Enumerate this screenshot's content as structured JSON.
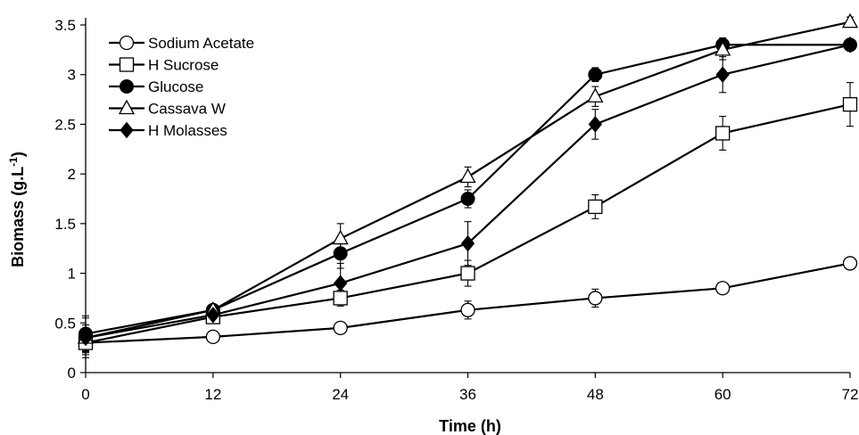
{
  "chart_data": {
    "type": "line",
    "title": "",
    "xlabel": "Time (h)",
    "ylabel": "Biomass (g.L-1)",
    "ylabel_parts": {
      "main": "Biomass (g.L",
      "sup": "-1",
      "close": ")"
    },
    "x": [
      0,
      12,
      24,
      36,
      48,
      60,
      72
    ],
    "xlim": [
      0,
      72
    ],
    "ylim": [
      0,
      3.5
    ],
    "x_ticks": [
      "0",
      "12",
      "24",
      "36",
      "48",
      "60",
      "72"
    ],
    "y_ticks": [
      "0",
      "0.5",
      "1",
      "1.5",
      "2",
      "2.5",
      "3",
      "3.5"
    ],
    "grid": false,
    "legend_position": "top-left",
    "series": [
      {
        "name": "Sodium Acetate",
        "marker": "circle-open",
        "values": [
          0.3,
          0.36,
          0.45,
          0.63,
          0.75,
          0.85,
          1.1
        ],
        "errors": [
          0.1,
          0.03,
          0.06,
          0.09,
          0.09,
          0.04,
          0.05
        ]
      },
      {
        "name": "H Sucrose",
        "marker": "square-open",
        "values": [
          0.3,
          0.56,
          0.75,
          1.0,
          1.67,
          2.41,
          2.7
        ],
        "errors": [
          0.12,
          0.03,
          0.08,
          0.13,
          0.12,
          0.17,
          0.22
        ]
      },
      {
        "name": "Glucose",
        "marker": "circle-filled",
        "values": [
          0.39,
          0.63,
          1.2,
          1.75,
          3.0,
          3.3,
          3.3
        ],
        "errors": [
          0.18,
          0.03,
          0.15,
          0.09,
          0.07,
          0.07,
          0.06
        ]
      },
      {
        "name": "Cassava W",
        "marker": "triangle-open",
        "values": [
          0.35,
          0.63,
          1.35,
          1.97,
          2.78,
          3.25,
          3.53
        ],
        "errors": [
          0.2,
          0.03,
          0.15,
          0.1,
          0.1,
          0.1,
          0.05
        ]
      },
      {
        "name": "H Molasses",
        "marker": "diamond-filled",
        "values": [
          0.35,
          0.58,
          0.9,
          1.3,
          2.5,
          3.0,
          3.3
        ],
        "errors": [
          0.13,
          0.03,
          0.2,
          0.22,
          0.15,
          0.18,
          0.06
        ]
      }
    ]
  }
}
